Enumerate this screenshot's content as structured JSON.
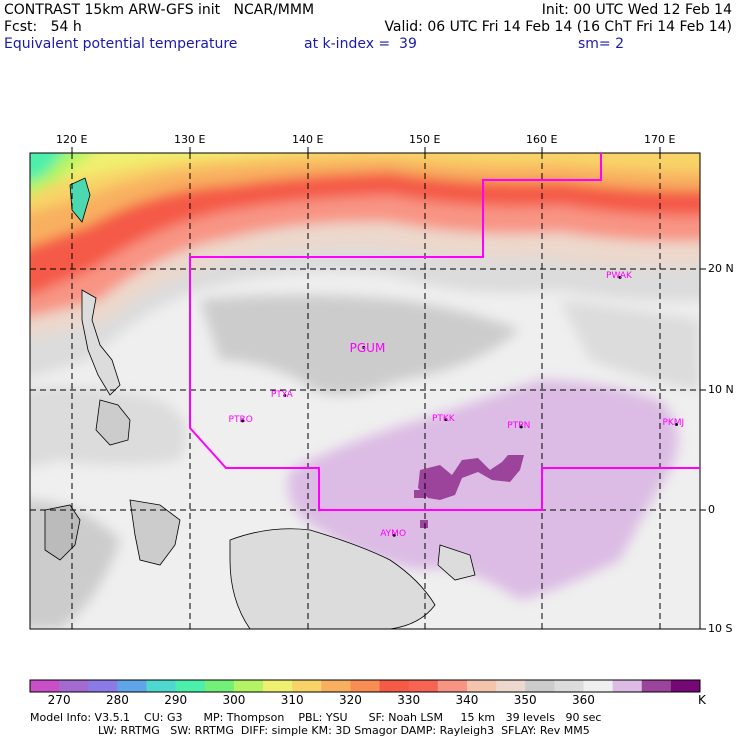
{
  "header": {
    "line1_left": "CONTRAST 15km ARW-GFS init   NCAR/MMM",
    "line1_right": "Init: 00 UTC Wed 12 Feb 14",
    "line2_left": "Fcst:   54 h",
    "line2_right": "Valid: 06 UTC Fri 14 Feb 14 (16 ChT Fri 14 Feb 14)",
    "line3_left": "Equivalent potential temperature",
    "line3_mid": "at k-index =  39",
    "line3_right": "sm= 2"
  },
  "map": {
    "lon_labels": [
      "120 E",
      "130 E",
      "140 E",
      "150 E",
      "160 E",
      "170 E"
    ],
    "lat_labels": [
      "20 N",
      "10 N",
      "0",
      "10 S"
    ],
    "stations": [
      {
        "id": "PGUM",
        "lon": 144.8,
        "lat": 13.5
      },
      {
        "id": "PWAK",
        "lon": 166.6,
        "lat": 19.3
      },
      {
        "id": "PTYA",
        "lon": 138.1,
        "lat": 9.5
      },
      {
        "id": "PTRO",
        "lon": 134.5,
        "lat": 7.4
      },
      {
        "id": "PTKK",
        "lon": 151.8,
        "lat": 7.5
      },
      {
        "id": "PTPN",
        "lon": 158.2,
        "lat": 6.9
      },
      {
        "id": "PKMJ",
        "lon": 171.4,
        "lat": 7.1
      },
      {
        "id": "AYMO",
        "lon": 147.4,
        "lat": -2.1
      }
    ]
  },
  "colorbar": {
    "colors": [
      "#c84fc8",
      "#a36ad2",
      "#8c7ae6",
      "#5fa6e8",
      "#4ed8cf",
      "#4cf0aa",
      "#73f078",
      "#b4f464",
      "#f0f070",
      "#f8d468",
      "#f8b060",
      "#f88c52",
      "#f45a46",
      "#f86454",
      "#f89484",
      "#f4c4ac",
      "#ecd8cc",
      "#cccccc",
      "#dcdcdc",
      "#efefef",
      "#dcbce4",
      "#9c449c",
      "#760876"
    ],
    "labels": [
      "270",
      "280",
      "290",
      "300",
      "310",
      "320",
      "330",
      "340",
      "350",
      "360"
    ],
    "unit": "K"
  },
  "footer": {
    "line1": "Model Info: V3.5.1    CU: G3      MP: Thompson    PBL: YSU      SF: Noah LSM     15 km   39 levels   90 sec",
    "line2": "LW: RRTMG   SW: RRTMG  DIFF: simple KM: 3D Smagor DAMP: Rayleigh3  SFLAY: Rev MM5"
  }
}
